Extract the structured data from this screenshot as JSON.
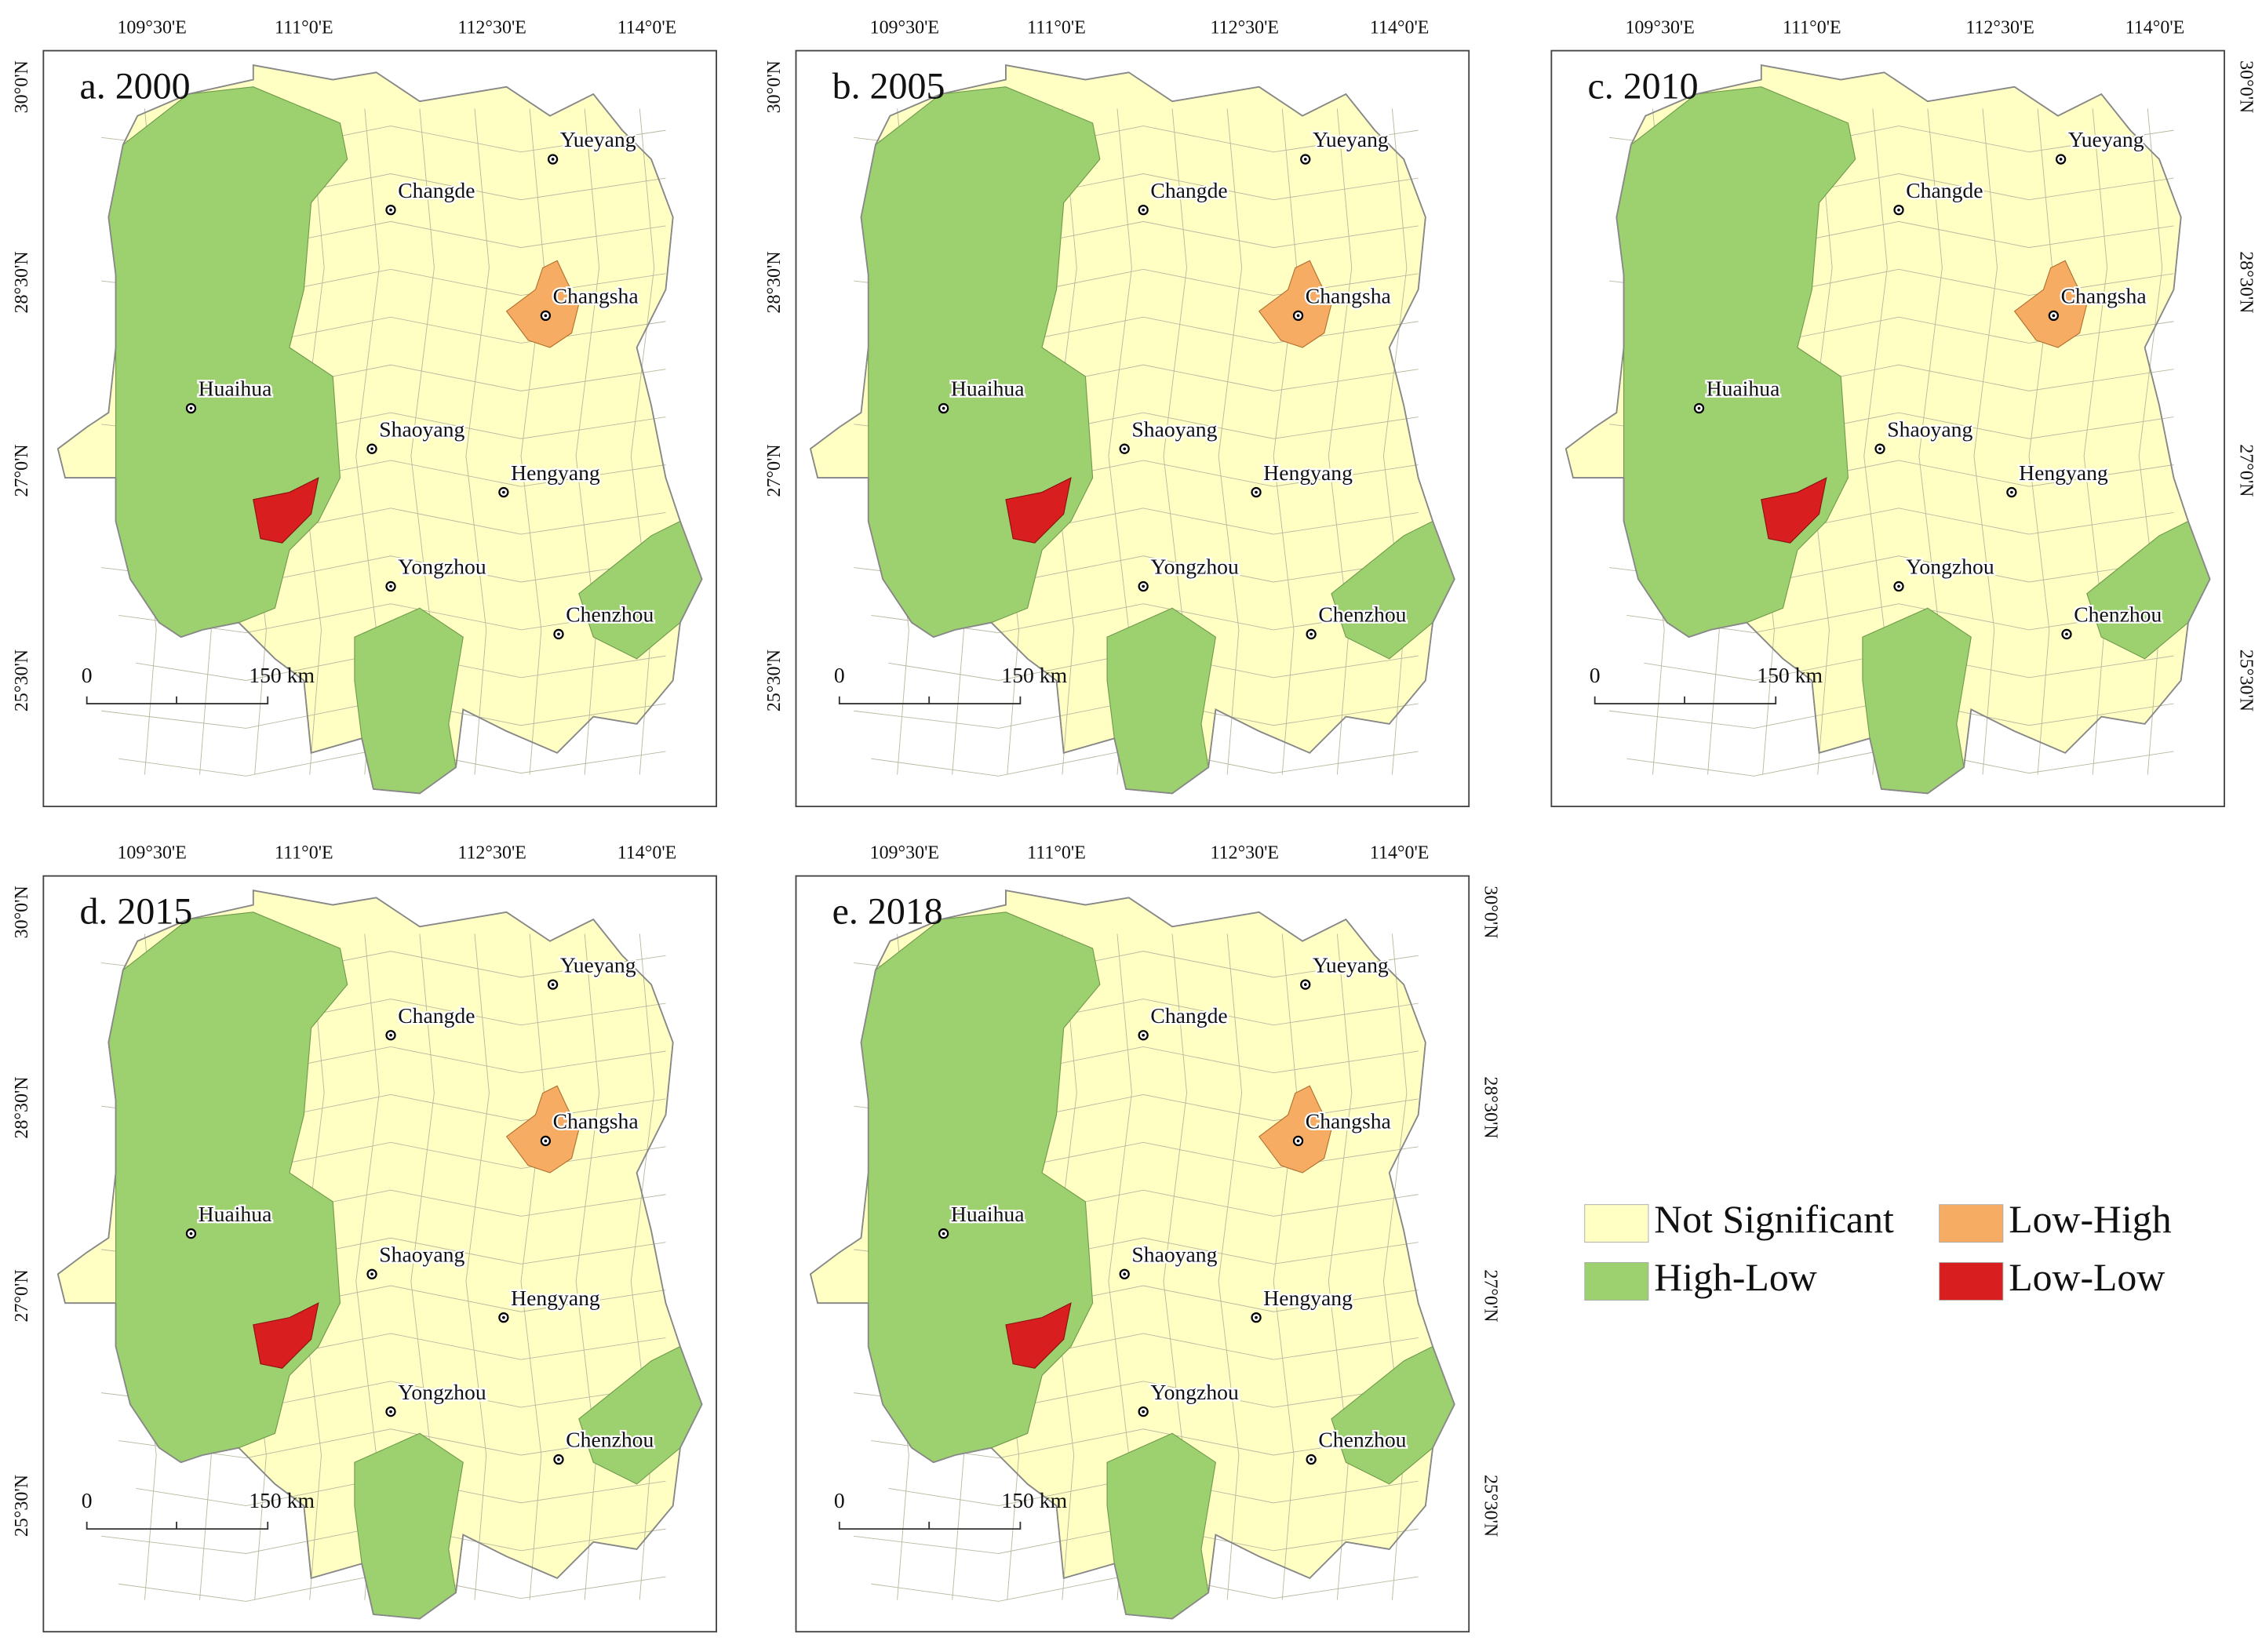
{
  "panels": [
    {
      "title": "a. 2000"
    },
    {
      "title": "b. 2005"
    },
    {
      "title": "c. 2010"
    },
    {
      "title": "d. 2015"
    },
    {
      "title": "e. 2018"
    }
  ],
  "map_labels": {
    "longitudes": [
      "109°30'E",
      "111°0'E",
      "112°30'E",
      "114°0'E"
    ],
    "latitudes": [
      "30°0'N",
      "28°30'N",
      "27°0'N",
      "25°30'N"
    ],
    "cities": [
      "Yueyang",
      "Changde",
      "Changsha",
      "Huaihua",
      "Shaoyang",
      "Hengyang",
      "Yongzhou",
      "Chenzhou"
    ],
    "scale_bar": [
      "0",
      "150 km"
    ]
  },
  "legend": [
    {
      "label": "Not Significant",
      "color": "#ffffc4"
    },
    {
      "label": "Low-High",
      "color": "#f6ac63"
    },
    {
      "label": "High-Low",
      "color": "#9dd06e"
    },
    {
      "label": "Low-Low",
      "color": "#d81e1e"
    }
  ]
}
